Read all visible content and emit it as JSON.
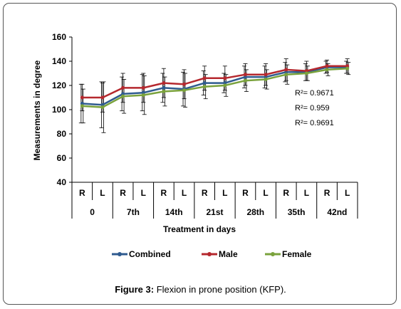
{
  "caption": {
    "label": "Figure 3:",
    "text": " Flexion in prone position (KFP)."
  },
  "chart_data": {
    "type": "line",
    "title": "",
    "ylabel": "Measurements in degree",
    "xlabel": "Treatment in days",
    "ylim": [
      40,
      160
    ],
    "yticks": [
      40,
      60,
      80,
      100,
      120,
      140,
      160
    ],
    "grid": false,
    "legend_position": "bottom",
    "categories": [
      "R",
      "L",
      "R",
      "L",
      "R",
      "L",
      "R",
      "L",
      "R",
      "L",
      "R",
      "L",
      "R",
      "L"
    ],
    "groups": [
      "0",
      "7th",
      "14th",
      "21st",
      "28th",
      "35th",
      "42nd"
    ],
    "series": [
      {
        "name": "Combined",
        "color": "#2f5b8f",
        "values": [
          105,
          104,
          113,
          114,
          118,
          117,
          122,
          122,
          127,
          127,
          131,
          131,
          135,
          135
        ],
        "error": [
          16,
          19,
          14,
          15,
          12,
          14,
          10,
          8,
          9,
          9,
          8,
          7,
          5,
          5
        ]
      },
      {
        "name": "Male",
        "color": "#b5282e",
        "values": [
          110,
          110,
          118,
          118,
          122,
          121,
          126,
          126,
          129,
          129,
          133,
          132,
          136,
          136
        ],
        "error": [
          11,
          12,
          12,
          12,
          12,
          12,
          10,
          10,
          9,
          9,
          9,
          8,
          5,
          6
        ]
      },
      {
        "name": "Female",
        "color": "#7aa23c",
        "values": [
          103,
          102,
          111,
          112,
          115,
          116,
          119,
          120,
          124,
          125,
          129,
          130,
          133,
          134
        ],
        "error": [
          14,
          21,
          14,
          16,
          12,
          14,
          10,
          9,
          9,
          8,
          8,
          6,
          5,
          5
        ]
      }
    ],
    "annotations": [
      "R²= 0.9671",
      "R²= 0.959",
      "R²= 0.9691"
    ]
  }
}
